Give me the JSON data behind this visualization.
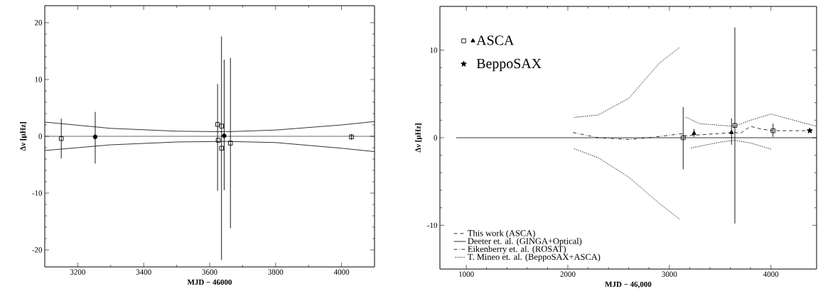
{
  "chart_data": [
    {
      "type": "scatter",
      "xlabel": "MJD − 46000",
      "ylabel": "Δν [μHz]",
      "xlim": [
        3100,
        4100
      ],
      "ylim": [
        -23,
        23
      ],
      "xticks": [
        3200,
        3400,
        3600,
        3800,
        4000
      ],
      "yticks": [
        -20,
        -10,
        0,
        10,
        20
      ],
      "ref_lines": [
        {
          "axis": "y",
          "value": 0
        }
      ],
      "series": [
        {
          "marker": "square",
          "color": "#000000",
          "x": [
            3150,
            3624,
            3626,
            3636,
            3636,
            3663,
            4030
          ],
          "values": [
            -0.4,
            2.1,
            -0.7,
            1.8,
            -2.1,
            -1.2,
            -0.1
          ],
          "errors": [
            [
              -3.9,
              3.1
            ],
            [
              -9.6,
              9.2
            ],
            null,
            [
              -21.8,
              17.6
            ],
            null,
            [
              -16.2,
              13.8
            ],
            [
              -0.6,
              0.4
            ]
          ]
        },
        {
          "marker": "circle",
          "color": "#000000",
          "x": [
            3253,
            3644
          ],
          "values": [
            -0.1,
            0.1
          ],
          "errors": [
            [
              -4.8,
              4.3
            ],
            [
              -9.5,
              13.5
            ]
          ]
        },
        {
          "type": "line",
          "line_style": "solid",
          "color": "#000000",
          "x": [
            3100,
            3300,
            3500,
            3650,
            3800,
            4000,
            4100
          ],
          "values": [
            2.5,
            1.4,
            0.9,
            0.8,
            1.1,
            2.0,
            2.6
          ]
        },
        {
          "type": "line",
          "line_style": "solid",
          "color": "#000000",
          "x": [
            3100,
            3300,
            3500,
            3650,
            3800,
            4000,
            4100
          ],
          "values": [
            -2.5,
            -1.5,
            -1.0,
            -0.9,
            -1.1,
            -2.1,
            -2.7
          ]
        }
      ]
    },
    {
      "type": "scatter",
      "xlabel": "MJD − 46,000",
      "ylabel": "Δν [μHz]",
      "xlim": [
        740,
        4450
      ],
      "ylim": [
        -15,
        15
      ],
      "xticks": [
        1000,
        2000,
        3000,
        4000
      ],
      "yticks": [
        -10,
        0,
        10
      ],
      "legend": "bottom left",
      "series": [
        {
          "marker": "square",
          "color": "#000000",
          "x": [
            3136,
            3645,
            4021
          ],
          "values": [
            0,
            1.4,
            0.8
          ],
          "errors": [
            [
              -3.6,
              3.5
            ],
            [
              -9.8,
              12.6
            ],
            [
              0.1,
              1.6
            ]
          ]
        },
        {
          "name": "ASCA",
          "marker": "triangle",
          "color": "#000000",
          "x": [
            3243,
            3612
          ],
          "values": [
            0.5,
            0.6
          ],
          "errors": [
            [
              0.1,
              1.0
            ],
            [
              -0.8,
              2.2
            ]
          ]
        },
        {
          "name": "BeppoSAX",
          "marker": "star",
          "color": "#000000",
          "x": [
            4383
          ],
          "values": [
            0.8
          ]
        },
        {
          "type": "line",
          "name": "This work (ASCA)",
          "line_style": "dashed",
          "color": "#000000",
          "x": [
            3140,
            3640,
            3700,
            3800,
            3900,
            4020,
            4400
          ],
          "values": [
            0.2,
            0.6,
            0.5,
            1.3,
            1.0,
            0.8,
            0.8
          ]
        },
        {
          "type": "line",
          "name": "Deeter et. al. (GINGA+Optical)",
          "line_style": "solid",
          "color": "#000000",
          "x": [
            900,
            4450
          ],
          "values": [
            0,
            0
          ]
        },
        {
          "type": "line",
          "name": "Eikenberry et. al. (ROSAT)",
          "line_style": "dashdot",
          "color": "#000000",
          "x": [
            2050,
            2300,
            2600,
            2800,
            3150
          ],
          "values": [
            0.6,
            0,
            -0.2,
            0,
            0.5
          ]
        },
        {
          "type": "line",
          "name": "T. Mineo et. al. (BeppoSAX+ASCA)",
          "line_style": "dotted",
          "color": "#000000",
          "x": [
            2050,
            2300,
            2600,
            2900,
            3100
          ],
          "values": [
            2.3,
            2.6,
            4.5,
            8.5,
            10.3
          ]
        },
        {
          "type": "line",
          "line_style": "dotted",
          "color": "#000000",
          "x": [
            2050,
            2300,
            2600,
            2900,
            3100
          ],
          "values": [
            -1.2,
            -2.3,
            -4.5,
            -7.5,
            -9.3
          ]
        },
        {
          "type": "line",
          "line_style": "dotted",
          "color": "#000000",
          "x": [
            3150,
            3300,
            3640,
            3800,
            4000,
            4450
          ],
          "values": [
            2.4,
            1.6,
            1.3,
            2.0,
            2.7,
            1.3
          ]
        },
        {
          "type": "line",
          "line_style": "dotted",
          "color": "#000000",
          "x": [
            3200,
            3500,
            3640,
            3800,
            4000
          ],
          "values": [
            -1.2,
            -0.5,
            -0.3,
            -0.6,
            -1.3
          ]
        }
      ]
    }
  ]
}
